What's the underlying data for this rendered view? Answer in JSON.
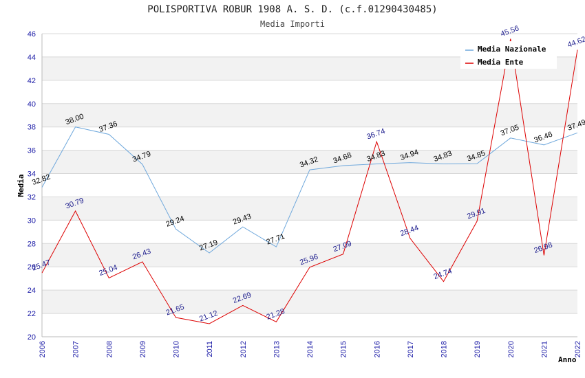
{
  "chart_data": {
    "type": "line",
    "title": "POLISPORTIVA ROBUR 1908 A. S. D. (c.f.01290430485)",
    "subtitle": "Media Importi",
    "xlabel": "Anno",
    "ylabel": "Media",
    "ylim": [
      20,
      46
    ],
    "ystep": 2,
    "grid": true,
    "legend_position": "top-right",
    "x": [
      "2006",
      "2007",
      "2008",
      "2009",
      "2010",
      "2011",
      "2012",
      "2013",
      "2014",
      "2015",
      "2016",
      "2017",
      "2018",
      "2019",
      "2020",
      "2021",
      "2022"
    ],
    "series": [
      {
        "name": "Media Nazionale",
        "color": "#6fa8dc",
        "values": [
          32.82,
          38.0,
          37.36,
          34.79,
          29.24,
          27.19,
          29.43,
          27.71,
          34.32,
          34.68,
          34.83,
          34.94,
          34.83,
          34.85,
          37.05,
          36.46,
          37.49
        ],
        "labels": [
          "32.82",
          "38.00",
          "37.36",
          "34.79",
          "29.24",
          "27.19",
          "29.43",
          "27.71",
          "34.32",
          "34.68",
          "34.83",
          "34.94",
          "34.83",
          "34.85",
          "37.05",
          "36.46",
          "37.49"
        ]
      },
      {
        "name": "Media Ente",
        "color": "#dd0000",
        "values": [
          25.47,
          30.79,
          25.04,
          26.43,
          21.65,
          21.12,
          22.69,
          21.28,
          25.96,
          27.09,
          36.74,
          28.44,
          24.74,
          29.91,
          45.56,
          26.98,
          44.62
        ],
        "labels": [
          "25.47",
          "30.79",
          "25.04",
          "26.43",
          "21.65",
          "21.12",
          "22.69",
          "21.28",
          "25.96",
          "27.09",
          "36.74",
          "28.44",
          "24.74",
          "29.91",
          "45.56",
          "26.98",
          "44.62"
        ]
      }
    ]
  }
}
